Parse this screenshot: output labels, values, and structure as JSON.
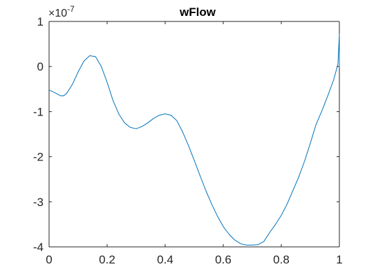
{
  "chart_data": {
    "type": "line",
    "title": "wFlow",
    "xlabel": "",
    "ylabel": "",
    "xlim": [
      0,
      1
    ],
    "ylim": [
      -4,
      1
    ],
    "y_exponent_label": "×10",
    "y_exponent_power": "-7",
    "x_ticks": [
      {
        "value": 0,
        "label": "0"
      },
      {
        "value": 0.2,
        "label": "0.2"
      },
      {
        "value": 0.4,
        "label": "0.4"
      },
      {
        "value": 0.6,
        "label": "0.6"
      },
      {
        "value": 0.8,
        "label": "0.8"
      },
      {
        "value": 1,
        "label": "1"
      }
    ],
    "y_ticks": [
      {
        "value": 1,
        "label": "1"
      },
      {
        "value": 0,
        "label": "0"
      },
      {
        "value": -1,
        "label": "-1"
      },
      {
        "value": -2,
        "label": "-2"
      },
      {
        "value": -3,
        "label": "-3"
      },
      {
        "value": -4,
        "label": "-4"
      }
    ],
    "grid": false,
    "series": [
      {
        "color": "#0072BD",
        "x": [
          0,
          0.02,
          0.04,
          0.05,
          0.06,
          0.08,
          0.1,
          0.12,
          0.14,
          0.16,
          0.18,
          0.2,
          0.22,
          0.24,
          0.26,
          0.28,
          0.3,
          0.32,
          0.34,
          0.36,
          0.38,
          0.4,
          0.42,
          0.44,
          0.46,
          0.48,
          0.5,
          0.52,
          0.54,
          0.56,
          0.58,
          0.6,
          0.62,
          0.64,
          0.66,
          0.68,
          0.7,
          0.72,
          0.74,
          0.76,
          0.78,
          0.8,
          0.82,
          0.84,
          0.86,
          0.88,
          0.9,
          0.92,
          0.94,
          0.96,
          0.98,
          0.995,
          1.0,
          1.0
        ],
        "y": [
          -0.52,
          -0.58,
          -0.65,
          -0.65,
          -0.6,
          -0.4,
          -0.12,
          0.12,
          0.24,
          0.22,
          0.0,
          -0.35,
          -0.75,
          -1.05,
          -1.25,
          -1.35,
          -1.38,
          -1.33,
          -1.25,
          -1.15,
          -1.08,
          -1.05,
          -1.08,
          -1.2,
          -1.45,
          -1.75,
          -2.08,
          -2.42,
          -2.75,
          -3.05,
          -3.32,
          -3.55,
          -3.72,
          -3.85,
          -3.93,
          -3.96,
          -3.96,
          -3.95,
          -3.88,
          -3.68,
          -3.5,
          -3.3,
          -3.05,
          -2.75,
          -2.45,
          -2.1,
          -1.7,
          -1.28,
          -0.98,
          -0.65,
          -0.3,
          0.05,
          0.72,
          -0.02
        ]
      }
    ]
  }
}
